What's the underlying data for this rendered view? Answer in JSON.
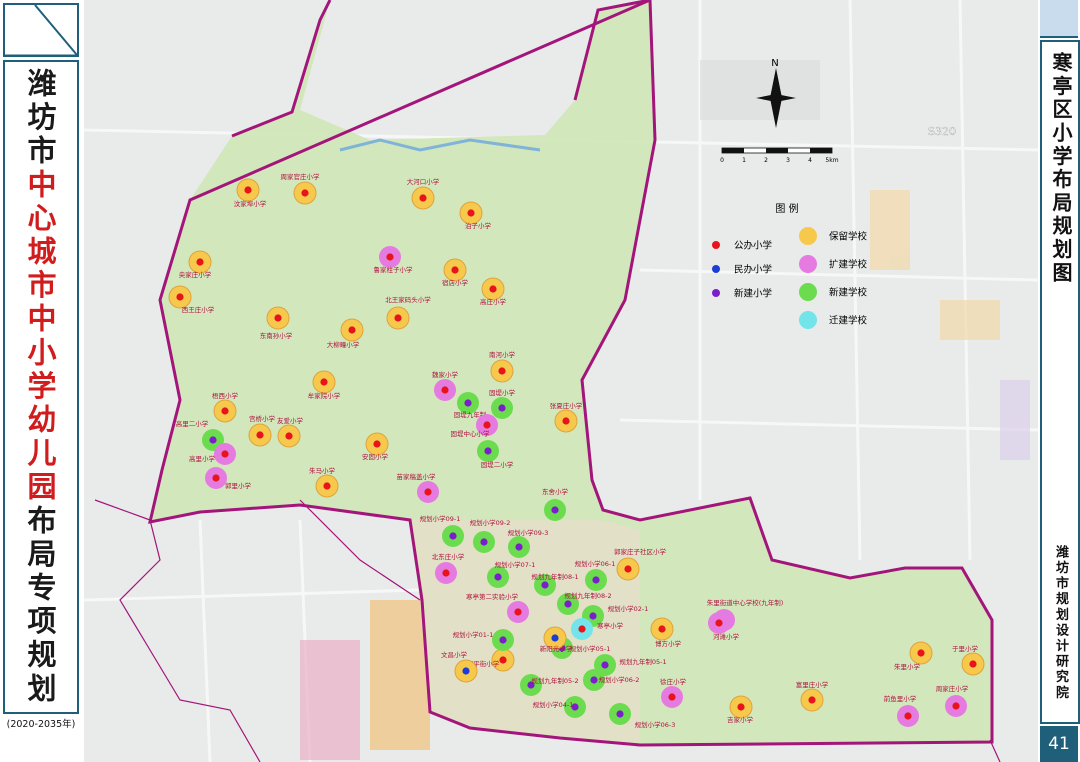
{
  "sidebar": {
    "title_parts": [
      {
        "text": "潍坊市",
        "color": "#1a1a1a"
      },
      {
        "text": "中心城市中小学幼儿园",
        "color": "#d01c1c"
      },
      {
        "text": "布局专项规划",
        "color": "#1a1a1a"
      }
    ],
    "period": "(2020-2035年)"
  },
  "right_panel": {
    "title": "寒亭区小学布局规划图",
    "institute": "潍坊市规划设计研究院",
    "page": "41"
  },
  "map": {
    "compass": "N",
    "scale_labels": [
      "0",
      "1",
      "2",
      "3",
      "4",
      "5km"
    ],
    "road_label": "S320",
    "legend": {
      "title": "图 例",
      "school_kinds": [
        {
          "label": "公办小学",
          "color": "#e8141b"
        },
        {
          "label": "民办小学",
          "color": "#1b3fd6"
        },
        {
          "label": "新建小学",
          "color": "#7a1fc9"
        }
      ],
      "school_status": [
        {
          "label": "保留学校",
          "color": "#f6c94c"
        },
        {
          "label": "扩建学校",
          "color": "#e57be0"
        },
        {
          "label": "新建学校",
          "color": "#6bdc4e"
        },
        {
          "label": "迁建学校",
          "color": "#72e4ea"
        }
      ]
    },
    "schools": [
      {
        "name": "汶家埠小学",
        "kind": "公办小学",
        "status": "保留学校"
      },
      {
        "name": "周家官庄小学",
        "kind": "公办小学",
        "status": "保留学校"
      },
      {
        "name": "大河口小学",
        "kind": "公办小学",
        "status": "保留学校"
      },
      {
        "name": "泊子小学",
        "kind": "公办小学",
        "status": "保留学校"
      },
      {
        "name": "鲁家柱子小学",
        "kind": "公办小学",
        "status": "扩建学校"
      },
      {
        "name": "宿店小学",
        "kind": "公办小学",
        "status": "保留学校"
      },
      {
        "name": "央家庄小学",
        "kind": "公办小学",
        "status": "保留学校"
      },
      {
        "name": "西王庄小学",
        "kind": "公办小学",
        "status": "保留学校"
      },
      {
        "name": "北王家码头小学",
        "kind": "公办小学",
        "status": "保留学校"
      },
      {
        "name": "高庄小学",
        "kind": "公办小学",
        "status": "保留学校"
      },
      {
        "name": "东南孙小学",
        "kind": "公办小学",
        "status": "保留学校"
      },
      {
        "name": "大柳疃小学",
        "kind": "公办小学",
        "status": "保留学校"
      },
      {
        "name": "牟家院小学",
        "kind": "公办小学",
        "status": "保留学校"
      },
      {
        "name": "南河小学",
        "kind": "公办小学",
        "status": "保留学校"
      },
      {
        "name": "魏家小学",
        "kind": "公办小学",
        "status": "扩建学校"
      },
      {
        "name": "固堤九年制",
        "kind": "新建小学",
        "status": "新建学校"
      },
      {
        "name": "固堤小学",
        "kind": "新建小学",
        "status": "新建学校"
      },
      {
        "name": "固堤中心小学",
        "kind": "公办小学",
        "status": "扩建学校"
      },
      {
        "name": "固堤二小学",
        "kind": "新建小学",
        "status": "新建学校"
      },
      {
        "name": "张夏庄小学",
        "kind": "公办小学",
        "status": "保留学校"
      },
      {
        "name": "梧西小学",
        "kind": "公办小学",
        "status": "保留学校"
      },
      {
        "name": "高里二小学",
        "kind": "新建小学",
        "status": "新建学校"
      },
      {
        "name": "高里小学",
        "kind": "公办小学",
        "status": "扩建学校"
      },
      {
        "name": "宫桥小学",
        "kind": "公办小学",
        "status": "保留学校"
      },
      {
        "name": "友爱小学",
        "kind": "公办小学",
        "status": "保留学校"
      },
      {
        "name": "安固小学",
        "kind": "公办小学",
        "status": "保留学校"
      },
      {
        "name": "朱马小学",
        "kind": "公办小学",
        "status": "保留学校"
      },
      {
        "name": "郭里小学",
        "kind": "公办小学",
        "status": "扩建学校"
      },
      {
        "name": "苗家稿盖小学",
        "kind": "公办小学",
        "status": "扩建学校"
      },
      {
        "name": "东舍小学",
        "kind": "新建小学",
        "status": "新建学校"
      },
      {
        "name": "规划小学09-1",
        "kind": "新建小学",
        "status": "新建学校"
      },
      {
        "name": "规划小学09-2",
        "kind": "新建小学",
        "status": "新建学校"
      },
      {
        "name": "规划小学09-3",
        "kind": "新建小学",
        "status": "新建学校"
      },
      {
        "name": "北东庄小学",
        "kind": "公办小学",
        "status": "扩建学校"
      },
      {
        "name": "规划小学07-1",
        "kind": "新建小学",
        "status": "新建学校"
      },
      {
        "name": "规划九年制08-1",
        "kind": "新建小学",
        "status": "新建学校"
      },
      {
        "name": "规划小学06-1",
        "kind": "新建小学",
        "status": "新建学校"
      },
      {
        "name": "郭家庄子社区小学",
        "kind": "公办小学",
        "status": "保留学校"
      },
      {
        "name": "寒亭第二实验小学",
        "kind": "公办小学",
        "status": "扩建学校"
      },
      {
        "name": "规划九年制08-2",
        "kind": "新建小学",
        "status": "新建学校"
      },
      {
        "name": "规划小学02-1",
        "kind": "新建小学",
        "status": "新建学校"
      },
      {
        "name": "朱里街道中心学校(九年制)",
        "kind": "公办小学",
        "status": "扩建学校"
      },
      {
        "name": "河滩小学",
        "kind": "公办小学",
        "status": "扩建学校"
      },
      {
        "name": "博方小学",
        "kind": "公办小学",
        "status": "保留学校"
      },
      {
        "name": "寒亭小学",
        "kind": "公办小学",
        "status": "迁建学校"
      },
      {
        "name": "富平街小学",
        "kind": "公办小学",
        "status": "保留学校"
      },
      {
        "name": "规划小学05-1",
        "kind": "新建小学",
        "status": "新建学校"
      },
      {
        "name": "规划九年制05-1",
        "kind": "新建小学",
        "status": "新建学校"
      },
      {
        "name": "徐庄小学",
        "kind": "公办小学",
        "status": "扩建学校"
      },
      {
        "name": "规划九年制05-2",
        "kind": "新建小学",
        "status": "新建学校"
      },
      {
        "name": "规划小学06-2",
        "kind": "新建小学",
        "status": "新建学校"
      },
      {
        "name": "规划小学06-3",
        "kind": "新建小学",
        "status": "新建学校"
      },
      {
        "name": "规划小学04-1",
        "kind": "新建小学",
        "status": "新建学校"
      },
      {
        "name": "吉家小学",
        "kind": "公办小学",
        "status": "保留学校"
      },
      {
        "name": "富里庄小学",
        "kind": "公办小学",
        "status": "保留学校"
      },
      {
        "name": "朱里小学",
        "kind": "公办小学",
        "status": "保留学校"
      },
      {
        "name": "于里小学",
        "kind": "公办小学",
        "status": "保留学校"
      },
      {
        "name": "周家庄小学",
        "kind": "公办小学",
        "status": "扩建学校"
      },
      {
        "name": "前鱼里小学",
        "kind": "公办小学",
        "status": "扩建学校"
      },
      {
        "name": "文昌小学",
        "kind": "民办小学",
        "status": "保留学校"
      },
      {
        "name": "新阳光小学",
        "kind": "民办小学",
        "status": "保留学校"
      },
      {
        "name": "规划小学01-1",
        "kind": "新建小学",
        "status": "新建学校"
      }
    ]
  }
}
